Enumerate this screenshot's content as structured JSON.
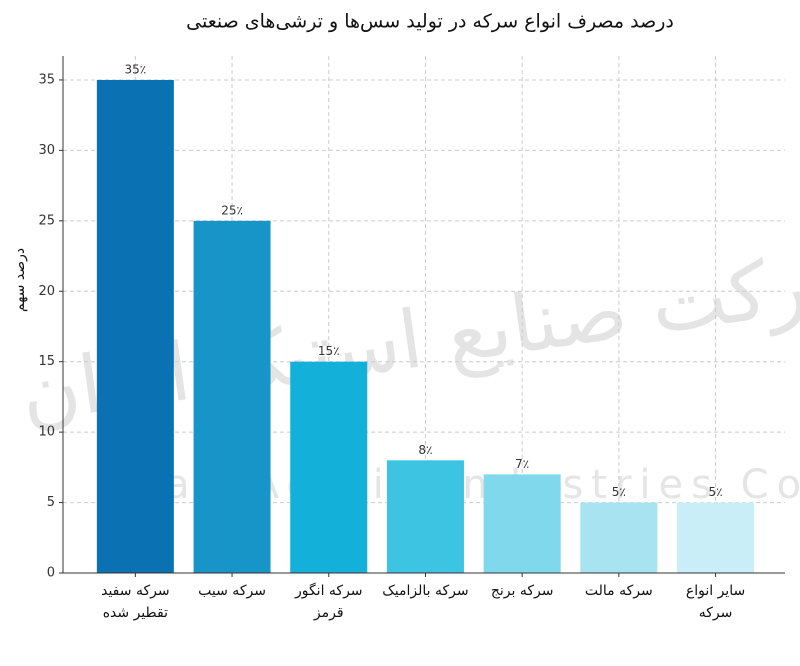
{
  "chart_data": {
    "type": "bar",
    "title": "درصد مصرف انواع سرکه در تولید سس‌ها و ترشی‌های صنعتی",
    "y_label": "درصد سهم",
    "categories": [
      "سرکه سفید تقطیر شده",
      "سرکه سیب",
      "سرکه انگور قرمز",
      "سرکه بالزامیک",
      "سرکه برنج",
      "سرکه مالت",
      "سایر انواع سرکه"
    ],
    "values": [
      35,
      25,
      15,
      8,
      7,
      5,
      5
    ],
    "value_labels": [
      "35٪",
      "25٪",
      "15٪",
      "8٪",
      "7٪",
      "5٪",
      "5٪"
    ],
    "colors": [
      "#0a72b3",
      "#1895c8",
      "#13b0da",
      "#3ec4e3",
      "#7fd8eb",
      "#a8e3f1",
      "#caeef7"
    ],
    "ylim": [
      0,
      36.7
    ],
    "yticks": [
      0,
      5,
      10,
      15,
      20,
      25,
      30,
      35
    ],
    "grid": true,
    "watermark": [
      "شرکت صنایع استیک ایران",
      "Iran Acetic Industries Co"
    ]
  }
}
